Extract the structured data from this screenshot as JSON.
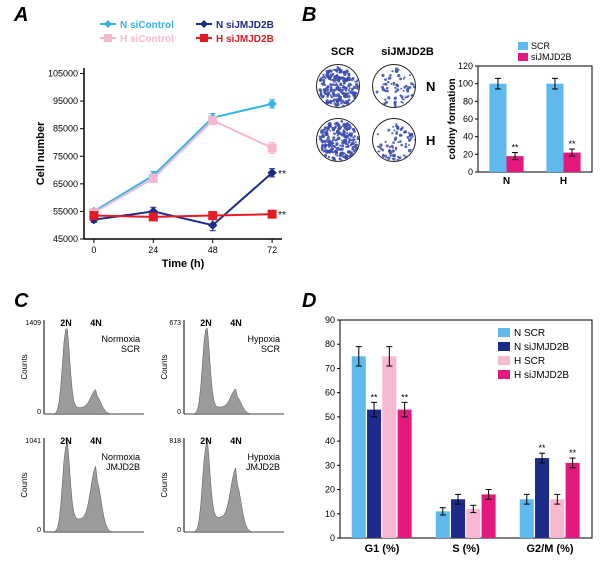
{
  "labels": {
    "A": "A",
    "B": "B",
    "C": "C",
    "D": "D"
  },
  "panelA": {
    "type": "line",
    "x_label": "Time (h)",
    "y_label": "Cell number",
    "x_ticks": [
      0,
      24,
      48,
      72
    ],
    "y_ticks": [
      45000,
      55000,
      65000,
      75000,
      85000,
      95000,
      105000
    ],
    "ylim": [
      45000,
      107000
    ],
    "xlim": [
      -4,
      76
    ],
    "title_fontsize": 10,
    "label_fontsize": 11,
    "background_color": "#ffffff",
    "axis_color": "#000000",
    "tick_fontsize": 9,
    "marker_size": 4,
    "line_width": 2,
    "series": [
      {
        "name": "N siControl",
        "color": "#34b5e5",
        "marker": "diamond",
        "x": [
          0,
          24,
          48,
          72
        ],
        "y": [
          55000,
          68000,
          89000,
          94000
        ],
        "err": [
          1000,
          1500,
          1500,
          1500
        ]
      },
      {
        "name": "N siJMJD2B",
        "color": "#1d2b8a",
        "marker": "diamond",
        "x": [
          0,
          24,
          48,
          72
        ],
        "y": [
          52000,
          55000,
          50000,
          69000
        ],
        "err": [
          1000,
          1500,
          2000,
          1500
        ],
        "sig": "**"
      },
      {
        "name": "H siControl",
        "color": "#f6b7d1",
        "marker": "square",
        "x": [
          0,
          24,
          48,
          72
        ],
        "y": [
          54500,
          67000,
          88000,
          78000
        ],
        "err": [
          1000,
          1500,
          1500,
          2000
        ]
      },
      {
        "name": "H siJMJD2B",
        "color": "#e51b24",
        "marker": "square",
        "x": [
          0,
          24,
          48,
          72
        ],
        "y": [
          53500,
          53000,
          53500,
          54000
        ],
        "err": [
          800,
          1000,
          1000,
          1000
        ],
        "sig": "**"
      }
    ],
    "legend_pos": "top-center",
    "sig_label": "**"
  },
  "panelB": {
    "type": "bar",
    "wells": {
      "col_labels": [
        "SCR",
        "siJMJD2B"
      ],
      "row_labels": [
        "N",
        "H"
      ],
      "stain_color": "#3a4bb0",
      "fill_levels": [
        [
          0.95,
          0.25
        ],
        [
          0.95,
          0.3
        ]
      ],
      "well_diameter": 44,
      "well_border": "#222"
    },
    "chart": {
      "categories": [
        "N",
        "H"
      ],
      "ylim": [
        0,
        120
      ],
      "ytick_step": 20,
      "y_label": "colony formation",
      "series": [
        {
          "name": "SCR",
          "color": "#5fb9ec",
          "values": [
            100,
            100
          ],
          "err": [
            6,
            6
          ]
        },
        {
          "name": "siJMJD2B",
          "color": "#e4197e",
          "values": [
            18,
            22
          ],
          "err": [
            4,
            4
          ],
          "sig": [
            "**",
            "**"
          ]
        }
      ],
      "label_fontsize": 10,
      "tick_fontsize": 9,
      "axis_color": "#000"
    }
  },
  "panelC": {
    "type": "histogram",
    "labels": {
      "x2N": "2N",
      "x4N": "4N"
    },
    "cond": [
      {
        "title": "Normoxia\nSCR",
        "g1": 75,
        "s": 11,
        "g2": 16,
        "ymax": 1409
      },
      {
        "title": "Hypoxia\nSCR",
        "g1": 75,
        "s": 12,
        "g2": 16,
        "ymax": 673
      },
      {
        "title": "Normoxia\nJMJD2B",
        "g1": 53,
        "s": 16,
        "g2": 33,
        "ymax": 1041
      },
      {
        "title": "Hypoxia\nJMJD2B",
        "g1": 53,
        "s": 18,
        "g2": 31,
        "ymax": 818
      }
    ],
    "fill_color": "#9b9b9b",
    "axis_color": "#000",
    "y_label": "Counts",
    "label_fontsize": 9
  },
  "panelD": {
    "type": "grouped-bar",
    "categories": [
      "G1 (%)",
      "S (%)",
      "G2/M (%)"
    ],
    "ylim": [
      0,
      90
    ],
    "ytick_step": 10,
    "label_fontsize": 11,
    "tick_fontsize": 9,
    "axis_color": "#000",
    "series": [
      {
        "name": "N SCR",
        "color": "#5fb9ec",
        "values": [
          75,
          11,
          16
        ],
        "err": [
          4,
          1.5,
          2
        ]
      },
      {
        "name": "N siJMJD2B",
        "color": "#1d2b8a",
        "values": [
          53,
          16,
          33
        ],
        "err": [
          3,
          2,
          2
        ],
        "sig": [
          "**",
          "",
          "**"
        ]
      },
      {
        "name": "H SCR",
        "color": "#f6b7d1",
        "values": [
          75,
          12,
          16
        ],
        "err": [
          4,
          1.5,
          2
        ]
      },
      {
        "name": "H siJMJD2B",
        "color": "#e4197e",
        "values": [
          53,
          18,
          31
        ],
        "err": [
          3,
          2,
          2
        ],
        "sig": [
          "**",
          "",
          "**"
        ]
      }
    ]
  }
}
